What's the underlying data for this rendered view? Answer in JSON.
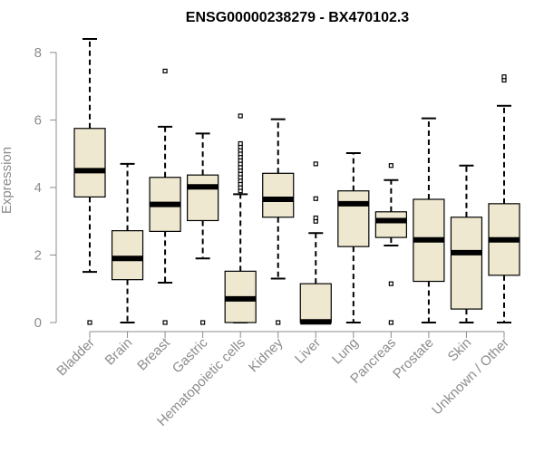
{
  "chart_data": {
    "type": "boxplot",
    "title": "ENSG00000238279 - BX470102.3",
    "xlabel": "",
    "ylabel": "Expression",
    "ylim": [
      0,
      8.4
    ],
    "yticks": [
      0,
      2,
      4,
      6,
      8
    ],
    "grid": false,
    "legend": "none",
    "colors": {
      "box_fill": "#efe8d0",
      "box_stroke": "#000000",
      "median": "#000000",
      "axis": "#8c8c8c",
      "tick_label": "#8c8c8c"
    },
    "categories": [
      "Bladder",
      "Brain",
      "Breast",
      "Gastric",
      "Hematopoietic cells",
      "Kidney",
      "Liver",
      "Lung",
      "Pancreas",
      "Prostate",
      "Skin",
      "Unknown / Other"
    ],
    "boxes": [
      {
        "category": "Bladder",
        "whisker_low": 1.5,
        "q1": 3.72,
        "median": 4.5,
        "q3": 5.75,
        "whisker_high": 8.4,
        "outliers": [
          0
        ]
      },
      {
        "category": "Brain",
        "whisker_low": 0,
        "q1": 1.27,
        "median": 1.9,
        "q3": 2.72,
        "whisker_high": 4.7,
        "outliers": []
      },
      {
        "category": "Breast",
        "whisker_low": 1.18,
        "q1": 2.7,
        "median": 3.5,
        "q3": 4.3,
        "whisker_high": 5.8,
        "outliers": [
          0,
          7.45
        ]
      },
      {
        "category": "Gastric",
        "whisker_low": 1.9,
        "q1": 3.02,
        "median": 4.02,
        "q3": 4.37,
        "whisker_high": 5.6,
        "outliers": [
          0
        ]
      },
      {
        "category": "Hematopoietic cells",
        "whisker_low": 0,
        "q1": 0,
        "median": 0.7,
        "q3": 1.52,
        "whisker_high": 3.8,
        "outliers": [
          3.9,
          4.0,
          4.1,
          4.2,
          4.3,
          4.4,
          4.5,
          4.6,
          4.7,
          4.8,
          4.9,
          5.0,
          5.1,
          5.2,
          5.3,
          6.12
        ]
      },
      {
        "category": "Kidney",
        "whisker_low": 1.3,
        "q1": 3.12,
        "median": 3.65,
        "q3": 4.42,
        "whisker_high": 6.02,
        "outliers": [
          0
        ]
      },
      {
        "category": "Liver",
        "whisker_low": 0,
        "q1": 0,
        "median": 0.02,
        "q3": 1.15,
        "whisker_high": 2.65,
        "outliers": [
          3.0,
          3.1,
          3.67,
          4.7
        ]
      },
      {
        "category": "Lung",
        "whisker_low": 0,
        "q1": 2.25,
        "median": 3.52,
        "q3": 3.9,
        "whisker_high": 5.02,
        "outliers": []
      },
      {
        "category": "Pancreas",
        "whisker_low": 2.28,
        "q1": 2.52,
        "median": 3.02,
        "q3": 3.28,
        "whisker_high": 4.22,
        "outliers": [
          0,
          1.15,
          4.65
        ]
      },
      {
        "category": "Prostate",
        "whisker_low": 0,
        "q1": 1.22,
        "median": 2.45,
        "q3": 3.65,
        "whisker_high": 6.05,
        "outliers": []
      },
      {
        "category": "Skin",
        "whisker_low": 0,
        "q1": 0.4,
        "median": 2.07,
        "q3": 3.12,
        "whisker_high": 4.65,
        "outliers": []
      },
      {
        "category": "Unknown / Other",
        "whisker_low": 0,
        "q1": 1.4,
        "median": 2.45,
        "q3": 3.52,
        "whisker_high": 6.42,
        "outliers": [
          7.18,
          7.28
        ]
      }
    ]
  }
}
